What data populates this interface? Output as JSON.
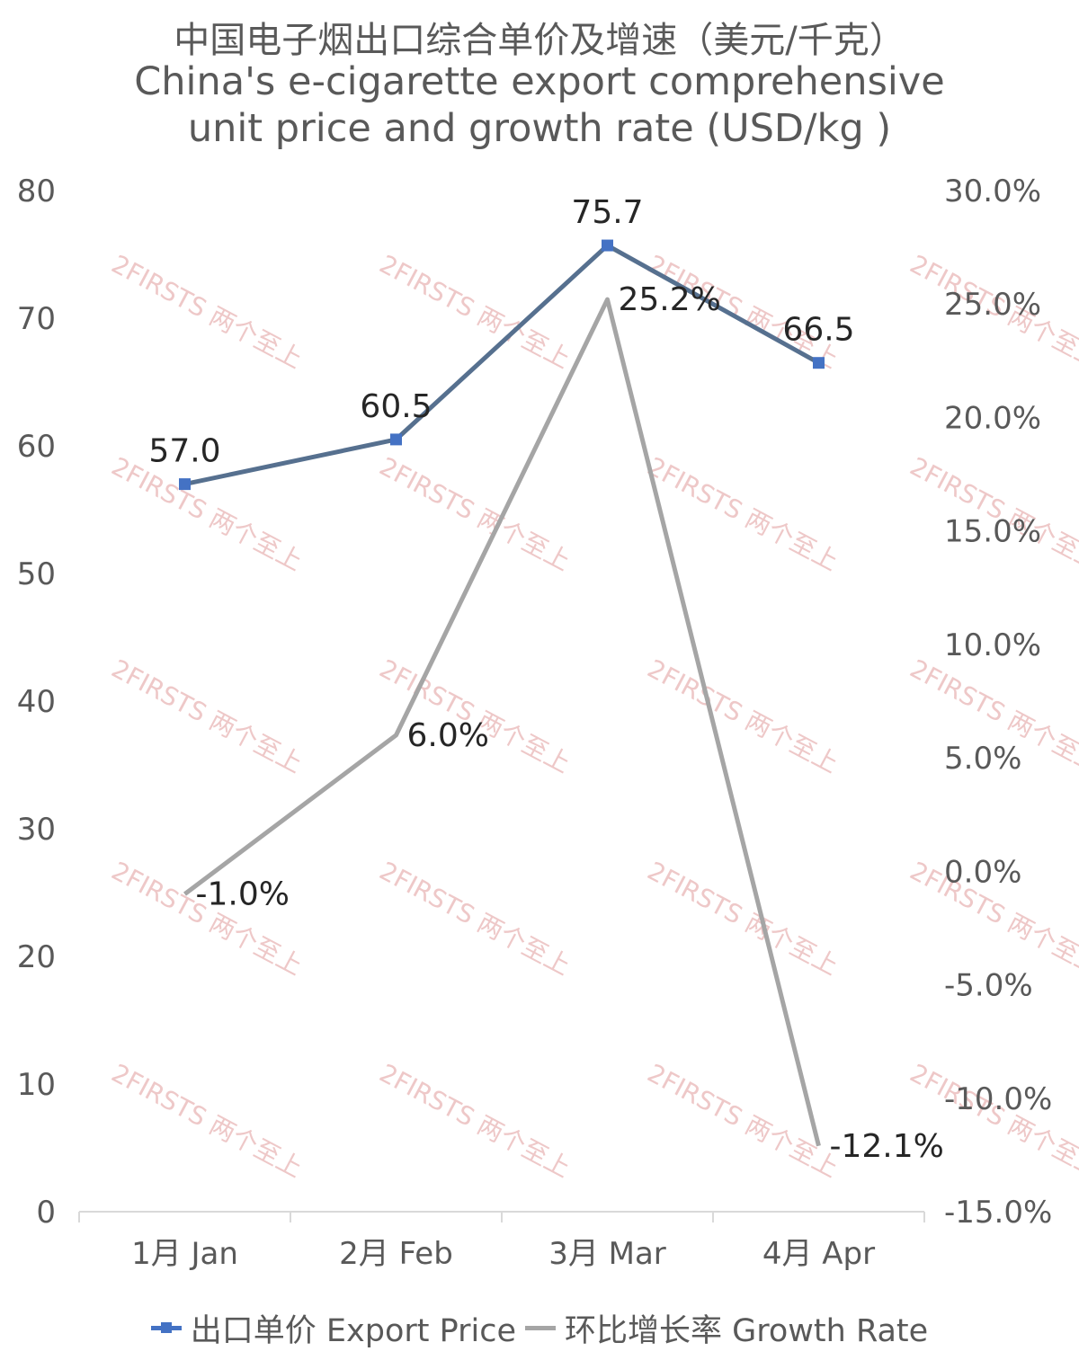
{
  "chart_data": {
    "type": "line",
    "title": "中国电子烟出口综合单价及增速（美元/千克）",
    "subtitle_lines": [
      "China's e-cigarette export comprehensive",
      "unit price and growth rate (USD/kg )"
    ],
    "categories": [
      "1月 Jan",
      "2月 Feb",
      "3月 Mar",
      "4月 Apr"
    ],
    "y_left": {
      "range": [
        0,
        80
      ],
      "ticks": [
        "0",
        "10",
        "20",
        "30",
        "40",
        "50",
        "60",
        "70",
        "80"
      ]
    },
    "y_right": {
      "range": [
        -15,
        30
      ],
      "ticks": [
        "-15.0%",
        "-10.0%",
        "-5.0%",
        "0.0%",
        "5.0%",
        "10.0%",
        "15.0%",
        "20.0%",
        "25.0%",
        "30.0%"
      ]
    },
    "series": [
      {
        "name": "出口单价 Export Price",
        "axis": "left",
        "color": "#4472C4",
        "line_color": "#56708F",
        "values": [
          57.0,
          60.5,
          75.7,
          66.5
        ],
        "labels": [
          "57.0",
          "60.5",
          "75.7",
          "66.5"
        ]
      },
      {
        "name": "环比增长率 Growth Rate",
        "axis": "right",
        "color": "#A5A5A5",
        "values": [
          -1.0,
          6.0,
          25.2,
          -12.1
        ],
        "labels": [
          "-1.0%",
          "6.0%",
          "25.2%",
          "-12.1%"
        ]
      }
    ],
    "legend_position": "bottom",
    "grid": false
  },
  "watermark": {
    "text": "2FIRSTS 两个至上",
    "color": "#eec8c8"
  }
}
